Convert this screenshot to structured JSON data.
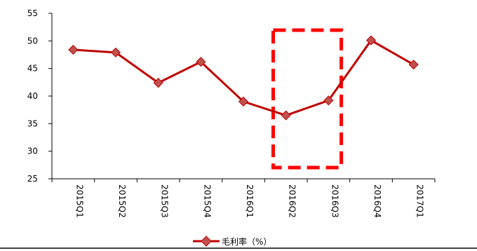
{
  "chart_data": {
    "type": "line",
    "categories": [
      "2015Q1",
      "2015Q2",
      "2015Q3",
      "2015Q4",
      "2016Q1",
      "2016Q2",
      "2016Q3",
      "2016Q4",
      "2017Q1"
    ],
    "series": [
      {
        "name": "毛利率（%）",
        "values": [
          48.4,
          47.9,
          42.4,
          46.2,
          39.0,
          36.5,
          39.2,
          50.1,
          45.7
        ]
      }
    ],
    "ylim": [
      25,
      55
    ],
    "yticks": [
      "25",
      "30",
      "35",
      "40",
      "45",
      "50",
      "55"
    ],
    "grid": false,
    "legend": "bottom",
    "annotation": {
      "type": "dashed-box",
      "range": [
        "2016Q2",
        "2016Q3"
      ]
    },
    "colors": {
      "series": "#C00000",
      "annotation": "#FF0000"
    }
  }
}
